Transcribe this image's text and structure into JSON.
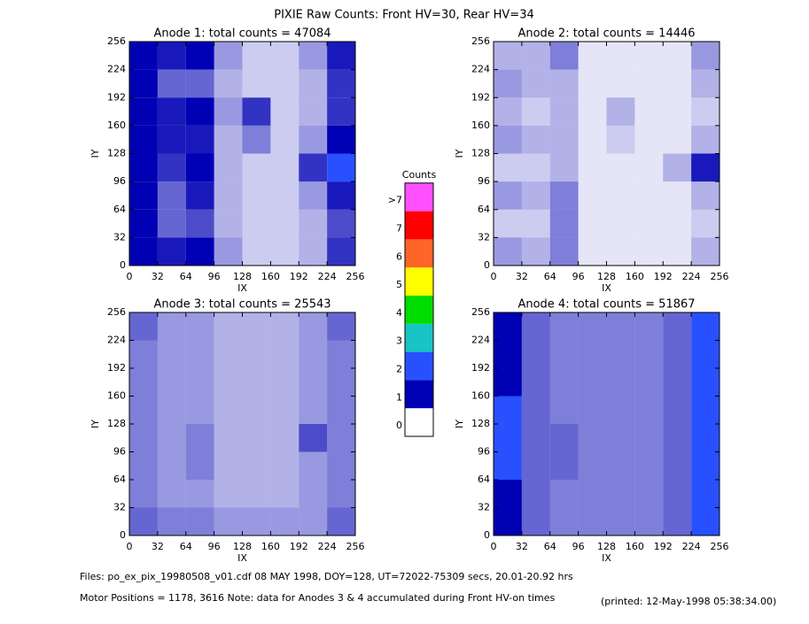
{
  "title": "PIXIE Raw Counts:  Front HV=30, Rear HV=34",
  "colorbar": {
    "title": "Counts",
    "labels": [
      "0",
      "1",
      "2",
      "3",
      "4",
      "5",
      "6",
      "7",
      ">7"
    ],
    "colors": [
      "#ffffff",
      "#0000b4",
      "#2850ff",
      "#18c4c4",
      "#00dc00",
      "#ffff00",
      "#ff6428",
      "#ff0000",
      "#ff50ff"
    ]
  },
  "footer": {
    "files": "Files: po_ex_pix_19980508_v01.cdf    08 MAY 1998, DOY=128, UT=72022-75309 secs, 20.01-20.92 hrs",
    "motor": "Motor Positions = 1178, 3616    Note: data for Anodes 3 & 4 accumulated during Front HV-on times",
    "printed": "(printed: 12-May-1998 05:38:34.00)"
  },
  "chart_data": [
    {
      "type": "heatmap",
      "title": "Anode 1: total counts = 47084",
      "x_label": "IX",
      "y_label": "IY",
      "x_bins": [
        0,
        32,
        64,
        96,
        128,
        160,
        192,
        224,
        256
      ],
      "y_bins": [
        0,
        32,
        64,
        96,
        128,
        160,
        192,
        224,
        256
      ],
      "xlim": [
        0,
        256
      ],
      "ylim": [
        0,
        256
      ],
      "xticks": [
        0,
        32,
        64,
        96,
        128,
        160,
        192,
        224,
        256
      ],
      "yticks": [
        0,
        32,
        64,
        96,
        128,
        160,
        192,
        224,
        256
      ],
      "z": [
        [
          1.5,
          0.9,
          1.2,
          0.4,
          0.2,
          0.2,
          0.3,
          0.8
        ],
        [
          1.3,
          0.6,
          0.7,
          0.3,
          0.2,
          0.2,
          0.3,
          0.7
        ],
        [
          1.4,
          0.6,
          0.9,
          0.3,
          0.2,
          0.2,
          0.4,
          0.9
        ],
        [
          1.6,
          0.8,
          1.2,
          0.3,
          0.2,
          0.2,
          0.8,
          2.2
        ],
        [
          1.8,
          0.9,
          0.9,
          0.3,
          0.5,
          0.2,
          0.4,
          1.0
        ],
        [
          1.6,
          0.9,
          1.3,
          0.4,
          0.8,
          0.2,
          0.3,
          0.8
        ],
        [
          1.5,
          0.6,
          0.6,
          0.3,
          0.2,
          0.2,
          0.3,
          0.8
        ],
        [
          1.6,
          0.9,
          1.2,
          0.4,
          0.2,
          0.2,
          0.4,
          0.9
        ]
      ]
    },
    {
      "type": "heatmap",
      "title": "Anode 2: total counts = 14446",
      "x_label": "IX",
      "y_label": "IY",
      "x_bins": [
        0,
        32,
        64,
        96,
        128,
        160,
        192,
        224,
        256
      ],
      "y_bins": [
        0,
        32,
        64,
        96,
        128,
        160,
        192,
        224,
        256
      ],
      "xlim": [
        0,
        256
      ],
      "ylim": [
        0,
        256
      ],
      "xticks": [
        0,
        32,
        64,
        96,
        128,
        160,
        192,
        224,
        256
      ],
      "yticks": [
        0,
        32,
        64,
        96,
        128,
        160,
        192,
        224,
        256
      ],
      "z": [
        [
          0.4,
          0.3,
          0.5,
          0.1,
          0.1,
          0.1,
          0.1,
          0.3
        ],
        [
          0.2,
          0.2,
          0.5,
          0.1,
          0.1,
          0.1,
          0.1,
          0.2
        ],
        [
          0.4,
          0.3,
          0.5,
          0.1,
          0.1,
          0.1,
          0.1,
          0.3
        ],
        [
          0.2,
          0.2,
          0.3,
          0.1,
          0.1,
          0.1,
          0.3,
          0.9
        ],
        [
          0.4,
          0.3,
          0.3,
          0.1,
          0.2,
          0.1,
          0.1,
          0.3
        ],
        [
          0.3,
          0.2,
          0.3,
          0.1,
          0.3,
          0.1,
          0.1,
          0.2
        ],
        [
          0.4,
          0.3,
          0.3,
          0.1,
          0.1,
          0.1,
          0.1,
          0.3
        ],
        [
          0.3,
          0.3,
          0.5,
          0.1,
          0.1,
          0.1,
          0.1,
          0.4
        ]
      ]
    },
    {
      "type": "heatmap",
      "title": "Anode 3: total counts = 25543",
      "x_label": "IX",
      "y_label": "IY",
      "x_bins": [
        0,
        32,
        64,
        96,
        128,
        160,
        192,
        224,
        256
      ],
      "y_bins": [
        0,
        32,
        64,
        96,
        128,
        160,
        192,
        224,
        256
      ],
      "xlim": [
        0,
        256
      ],
      "ylim": [
        0,
        256
      ],
      "xticks": [
        0,
        32,
        64,
        96,
        128,
        160,
        192,
        224,
        256
      ],
      "yticks": [
        0,
        32,
        64,
        96,
        128,
        160,
        192,
        224,
        256
      ],
      "z": [
        [
          0.6,
          0.5,
          0.5,
          0.4,
          0.4,
          0.4,
          0.4,
          0.6
        ],
        [
          0.5,
          0.4,
          0.4,
          0.3,
          0.3,
          0.3,
          0.4,
          0.5
        ],
        [
          0.5,
          0.4,
          0.5,
          0.3,
          0.3,
          0.3,
          0.4,
          0.5
        ],
        [
          0.5,
          0.4,
          0.5,
          0.3,
          0.3,
          0.3,
          0.7,
          0.5
        ],
        [
          0.5,
          0.4,
          0.4,
          0.3,
          0.3,
          0.3,
          0.4,
          0.5
        ],
        [
          0.5,
          0.4,
          0.4,
          0.3,
          0.3,
          0.3,
          0.4,
          0.5
        ],
        [
          0.5,
          0.4,
          0.4,
          0.3,
          0.3,
          0.3,
          0.4,
          0.5
        ],
        [
          0.6,
          0.4,
          0.4,
          0.3,
          0.3,
          0.3,
          0.4,
          0.6
        ]
      ]
    },
    {
      "type": "heatmap",
      "title": "Anode 4: total counts = 51867",
      "x_label": "IX",
      "y_label": "IY",
      "x_bins": [
        0,
        32,
        64,
        96,
        128,
        160,
        192,
        224,
        256
      ],
      "y_bins": [
        0,
        32,
        64,
        96,
        128,
        160,
        192,
        224,
        256
      ],
      "xlim": [
        0,
        256
      ],
      "ylim": [
        0,
        256
      ],
      "xticks": [
        0,
        32,
        64,
        96,
        128,
        160,
        192,
        224,
        256
      ],
      "yticks": [
        0,
        32,
        64,
        96,
        128,
        160,
        192,
        224,
        256
      ],
      "z": [
        [
          1.8,
          0.6,
          0.5,
          0.5,
          0.5,
          0.5,
          0.6,
          2.0
        ],
        [
          1.9,
          0.6,
          0.5,
          0.5,
          0.5,
          0.5,
          0.6,
          2.1
        ],
        [
          2.0,
          0.6,
          0.6,
          0.5,
          0.5,
          0.5,
          0.6,
          2.2
        ],
        [
          2.1,
          0.6,
          0.6,
          0.5,
          0.5,
          0.5,
          0.6,
          2.2
        ],
        [
          2.0,
          0.6,
          0.5,
          0.5,
          0.5,
          0.5,
          0.6,
          2.1
        ],
        [
          1.9,
          0.6,
          0.5,
          0.5,
          0.5,
          0.5,
          0.6,
          2.0
        ],
        [
          1.8,
          0.6,
          0.5,
          0.5,
          0.5,
          0.5,
          0.6,
          2.0
        ],
        [
          1.9,
          0.6,
          0.5,
          0.5,
          0.5,
          0.5,
          0.6,
          2.1
        ]
      ]
    }
  ]
}
